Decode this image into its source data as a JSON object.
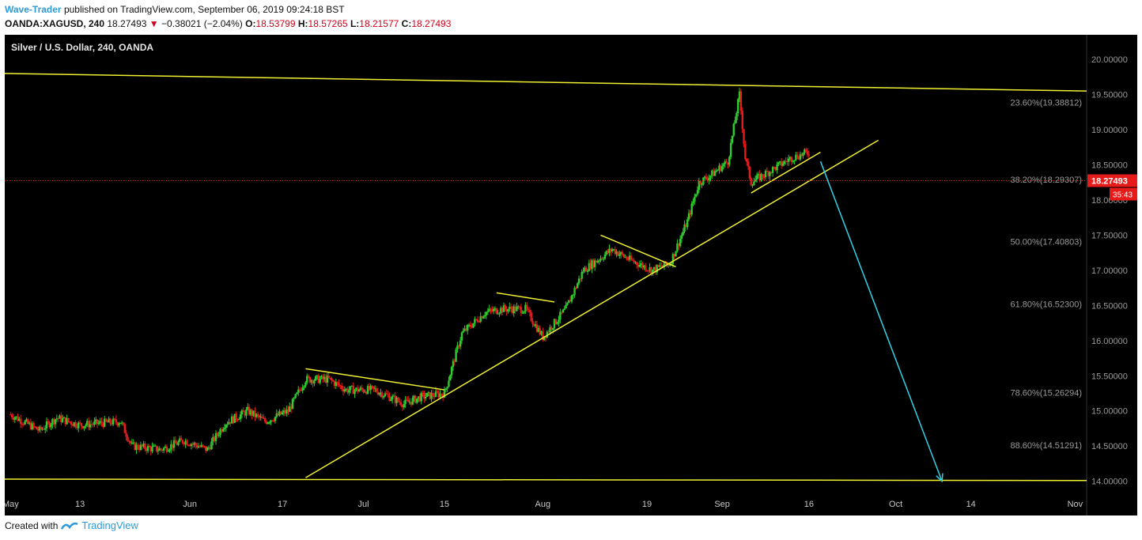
{
  "header": {
    "author": "Wave-Trader",
    "published": "published on TradingView.com, September 06, 2019 09:24:18 BST"
  },
  "quote": {
    "symbol": "OANDA:XAGUSD, 240",
    "last": "18.27493",
    "arrow": "▼",
    "change": "−0.38021 (−2.04%)",
    "o_label": "O:",
    "o": "18.53799",
    "h_label": "H:",
    "h": "18.57265",
    "l_label": "L:",
    "l": "18.21577",
    "c_label": "C:",
    "c": "18.27493"
  },
  "chart_title": "Silver / U.S. Dollar, 240, OANDA",
  "footer": {
    "created_with": "Created with",
    "brand": "TradingView"
  },
  "colors": {
    "background": "#000000",
    "up": "#2ecc2e",
    "down": "#e81b1b",
    "trendline": "#f0f032",
    "target_arrow": "#31d3e6",
    "axis_text": "#9a9a9a",
    "price_tag": "#e81b1b"
  },
  "chart_data": {
    "type": "candlestick",
    "title": "Silver / U.S. Dollar, 240, OANDA",
    "ylim": [
      13.85,
      20.35
    ],
    "y_ticks": [
      "20.00000",
      "19.50000",
      "19.00000",
      "18.50000",
      "18.00000",
      "17.50000",
      "17.00000",
      "16.50000",
      "16.00000",
      "15.50000",
      "15.00000",
      "14.50000",
      "14.00000"
    ],
    "x_ticks": [
      "May",
      "13",
      "Jun",
      "17",
      "Jul",
      "15",
      "Aug",
      "19",
      "Sep",
      "16",
      "Oct",
      "14",
      "Nov"
    ],
    "last_price": "18.27493",
    "countdown": "35:43",
    "fib_levels": [
      {
        "label": "23.60%(19.38812)",
        "value": 19.38812
      },
      {
        "label": "38.20%(18.29307)",
        "value": 18.29307
      },
      {
        "label": "50.00%(17.40803)",
        "value": 17.40803
      },
      {
        "label": "61.80%(16.52300)",
        "value": 16.523
      },
      {
        "label": "78.60%(15.26294)",
        "value": 15.26294
      },
      {
        "label": "88.60%(14.51291)",
        "value": 14.51291
      }
    ],
    "price_path": [
      [
        "2019-05-01",
        14.95
      ],
      [
        "2019-05-06",
        14.72
      ],
      [
        "2019-05-09",
        14.9
      ],
      [
        "2019-05-13",
        14.8
      ],
      [
        "2019-05-20",
        14.85
      ],
      [
        "2019-05-22",
        14.5
      ],
      [
        "2019-05-27",
        14.45
      ],
      [
        "2019-05-31",
        14.58
      ],
      [
        "2019-06-04",
        14.45
      ],
      [
        "2019-06-07",
        14.82
      ],
      [
        "2019-06-11",
        15.0
      ],
      [
        "2019-06-14",
        14.85
      ],
      [
        "2019-06-18",
        15.0
      ],
      [
        "2019-06-21",
        15.45
      ],
      [
        "2019-06-25",
        15.45
      ],
      [
        "2019-06-28",
        15.3
      ],
      [
        "2019-07-03",
        15.3
      ],
      [
        "2019-07-08",
        15.1
      ],
      [
        "2019-07-11",
        15.2
      ],
      [
        "2019-07-15",
        15.25
      ],
      [
        "2019-07-18",
        16.1
      ],
      [
        "2019-07-22",
        16.4
      ],
      [
        "2019-07-25",
        16.45
      ],
      [
        "2019-07-29",
        16.45
      ],
      [
        "2019-08-01",
        16.05
      ],
      [
        "2019-08-05",
        16.45
      ],
      [
        "2019-08-08",
        17.0
      ],
      [
        "2019-08-13",
        17.3
      ],
      [
        "2019-08-16",
        17.15
      ],
      [
        "2019-08-20",
        17.0
      ],
      [
        "2019-08-23",
        17.1
      ],
      [
        "2019-08-26",
        17.7
      ],
      [
        "2019-08-28",
        18.25
      ],
      [
        "2019-08-30",
        18.35
      ],
      [
        "2019-09-02",
        18.55
      ],
      [
        "2019-09-04",
        19.5
      ],
      [
        "2019-09-05",
        18.6
      ],
      [
        "2019-09-06",
        18.25
      ],
      [
        "2019-09-10",
        18.45
      ],
      [
        "2019-09-13",
        18.6
      ],
      [
        "2019-09-16",
        18.68
      ]
    ],
    "lines": [
      {
        "name": "upper-resistance",
        "from": [
          "2019-04-30",
          19.8
        ],
        "to": [
          "2019-11-03",
          19.55
        ]
      },
      {
        "name": "bottom-support",
        "from": [
          "2019-04-30",
          14.03
        ],
        "to": [
          "2019-11-03",
          14.01
        ]
      },
      {
        "name": "rising-trendline",
        "from": [
          "2019-06-21",
          14.05
        ],
        "to": [
          "2019-09-28",
          18.85
        ]
      },
      {
        "name": "wedge-1",
        "from": [
          "2019-06-21",
          15.6
        ],
        "to": [
          "2019-07-15",
          15.3
        ]
      },
      {
        "name": "wedge-2",
        "from": [
          "2019-07-24",
          16.68
        ],
        "to": [
          "2019-08-03",
          16.55
        ]
      },
      {
        "name": "wedge-3",
        "from": [
          "2019-08-11",
          17.5
        ],
        "to": [
          "2019-08-24",
          17.05
        ]
      },
      {
        "name": "wedge-4",
        "from": [
          "2019-09-06",
          18.1
        ],
        "to": [
          "2019-09-18",
          18.68
        ]
      }
    ],
    "projection": {
      "from": [
        "2019-09-18",
        18.55
      ],
      "to": [
        "2019-10-09",
        14.0
      ]
    }
  }
}
